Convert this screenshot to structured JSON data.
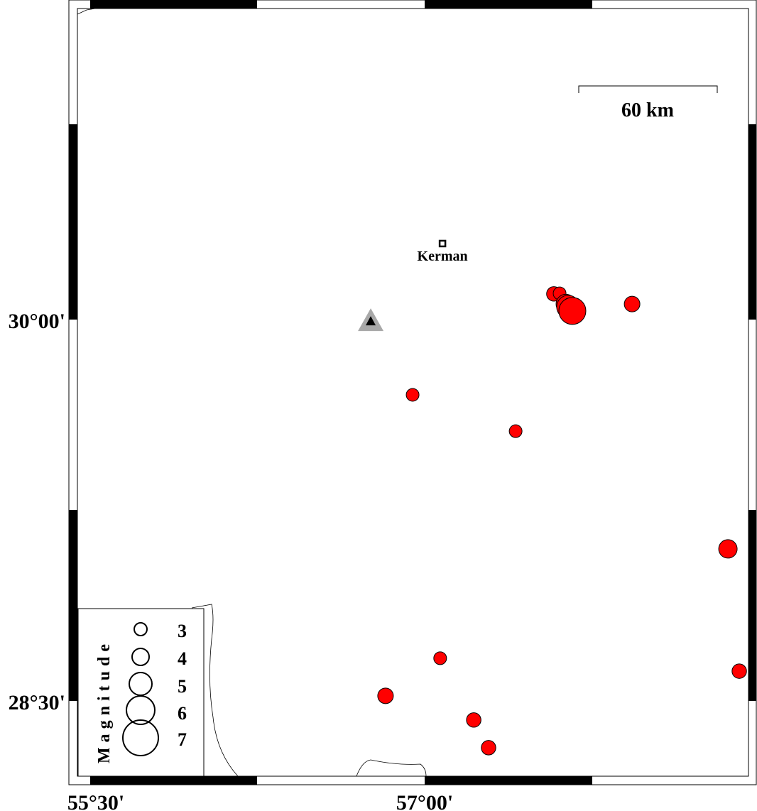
{
  "map": {
    "lon_range": [
      55.5,
      58.5
    ],
    "lat_range": [
      27.9,
      30.72
    ],
    "x_ticks": [
      {
        "value": 55.5,
        "label": "55°30'"
      },
      {
        "value": 57.0,
        "label": "57°00'"
      }
    ],
    "y_ticks": [
      {
        "value": 30.0,
        "label": "30°00'"
      },
      {
        "value": 28.5,
        "label": "28°30'"
      }
    ],
    "scale_bar": {
      "label": "60 km"
    },
    "city": {
      "name": "Kerman",
      "lon": 57.077,
      "lat": 30.299
    },
    "station": {
      "lon": 56.767,
      "lat": 29.994,
      "symbol": "triangle"
    },
    "colors": {
      "event": "#ff0000",
      "station_halo": "#a8a8a8",
      "station": "#000000"
    },
    "events": [
      {
        "lon": 57.558,
        "lat": 30.101,
        "mag": 3.3
      },
      {
        "lon": 57.583,
        "lat": 30.103,
        "mag": 3.0
      },
      {
        "lon": 57.61,
        "lat": 30.061,
        "mag": 4.2
      },
      {
        "lon": 57.62,
        "lat": 30.05,
        "mag": 4.8
      },
      {
        "lon": 57.638,
        "lat": 30.034,
        "mag": 5.5
      },
      {
        "lon": 57.896,
        "lat": 30.061,
        "mag": 3.5
      },
      {
        "lon": 56.948,
        "lat": 29.704,
        "mag": 3.0
      },
      {
        "lon": 57.393,
        "lat": 29.561,
        "mag": 3.0
      },
      {
        "lon": 58.31,
        "lat": 29.098,
        "mag": 4.0
      },
      {
        "lon": 58.359,
        "lat": 28.617,
        "mag": 3.3
      },
      {
        "lon": 57.067,
        "lat": 28.668,
        "mag": 3.0
      },
      {
        "lon": 56.831,
        "lat": 28.52,
        "mag": 3.5
      },
      {
        "lon": 57.212,
        "lat": 28.425,
        "mag": 3.3
      },
      {
        "lon": 57.276,
        "lat": 28.316,
        "mag": 3.3
      }
    ]
  },
  "legend": {
    "title": "Magnitude",
    "entries": [
      "3",
      "4",
      "5",
      "6",
      "7"
    ]
  }
}
